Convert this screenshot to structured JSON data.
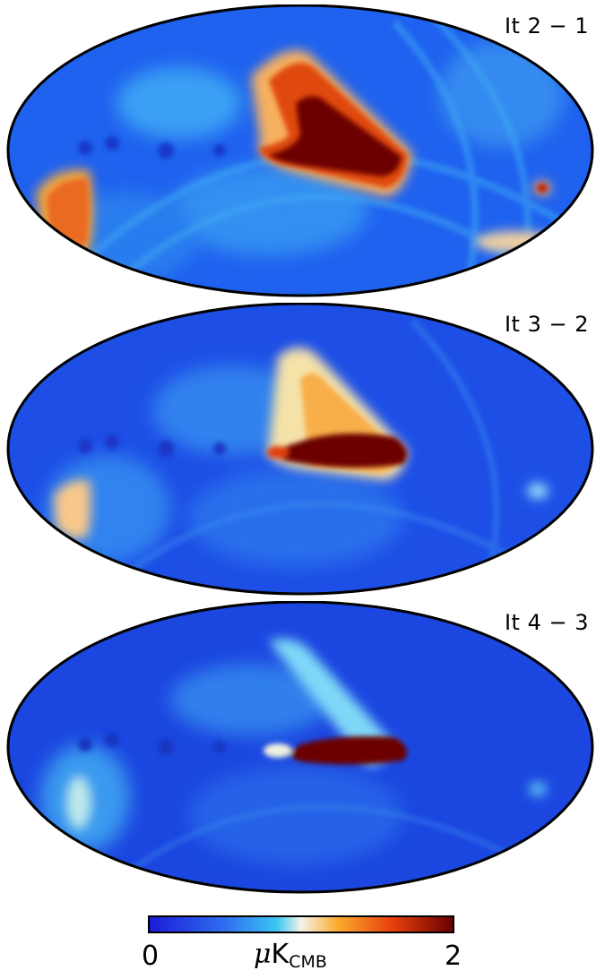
{
  "panels": [
    {
      "label": "It 2 − 1"
    },
    {
      "label": "It 3 − 2"
    },
    {
      "label": "It 4 − 3"
    }
  ],
  "colorbar": {
    "min_label": "0",
    "max_label": "2",
    "unit_prefix": "μ",
    "unit_main": "K",
    "unit_sub": "CMB",
    "colors": [
      "#1b1bd8",
      "#2f6ff0",
      "#3ac6f3",
      "#f3f3e8",
      "#fcab2e",
      "#e8400c",
      "#6a0000"
    ]
  },
  "colors": {
    "background_blue": "#1f62ef",
    "deep_blue": "#1a3fd6",
    "light_blue": "#3fa8f4",
    "cyan": "#48d2f5",
    "pale": "#f5eedb",
    "orange": "#f8a43a",
    "red": "#d6340c",
    "dark_red": "#6c0000"
  }
}
